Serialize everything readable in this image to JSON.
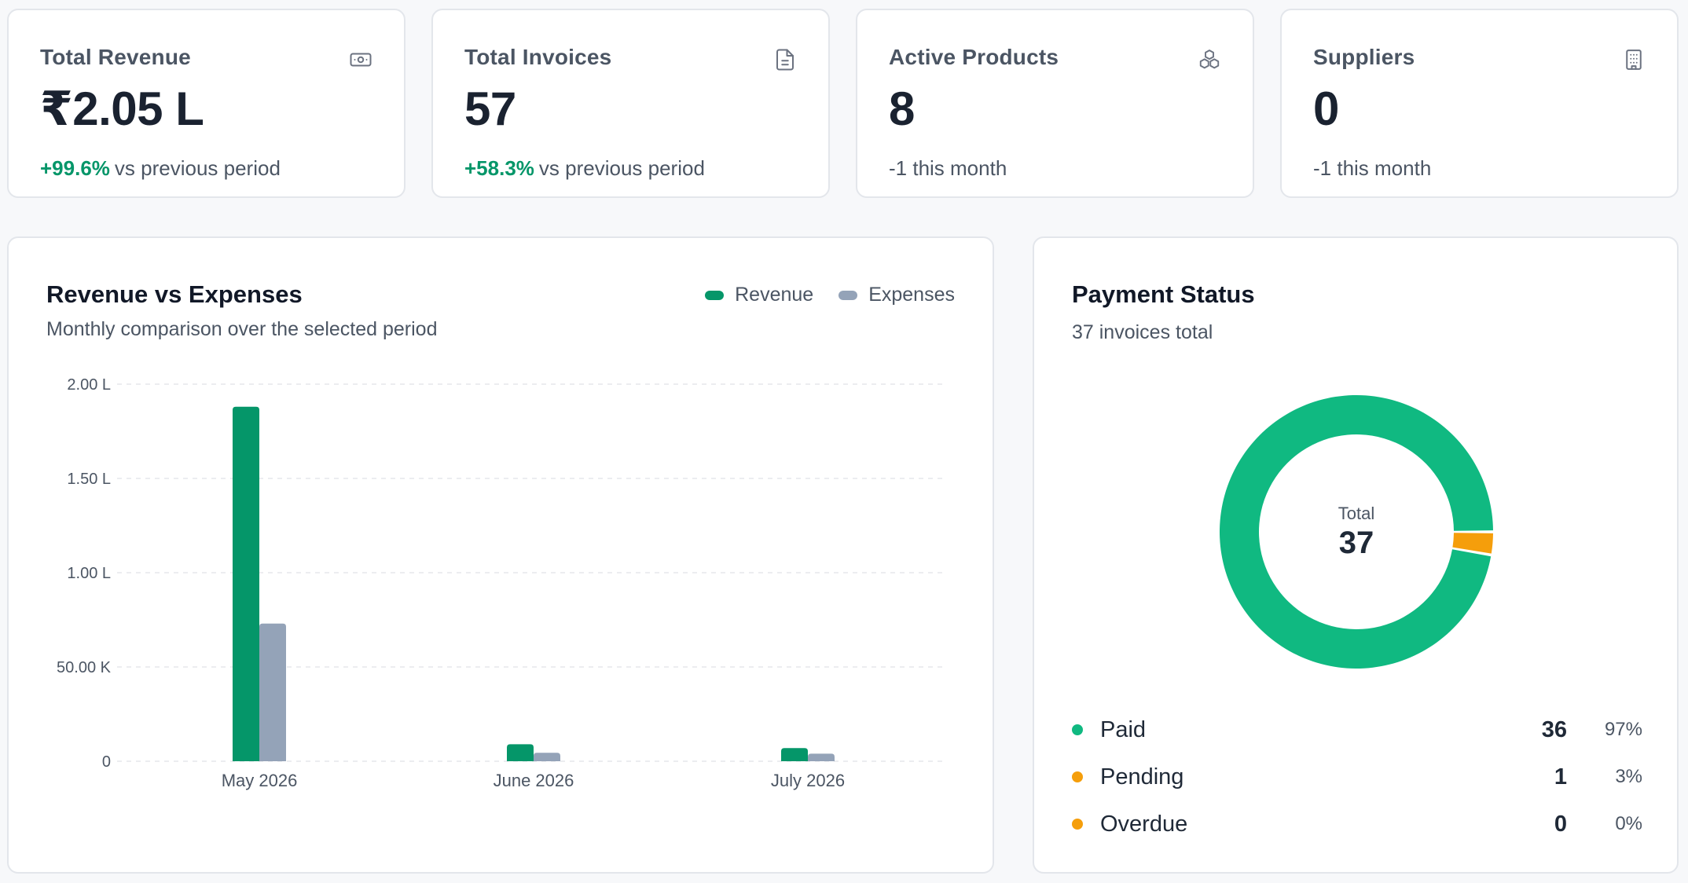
{
  "stats": [
    {
      "title": "Total Revenue",
      "value": "₹2.05 L",
      "delta": "+99.6%",
      "sub": "vs previous period",
      "icon": "banknote-icon"
    },
    {
      "title": "Total Invoices",
      "value": "57",
      "delta": "+58.3%",
      "sub": "vs previous period",
      "icon": "file-text-icon"
    },
    {
      "title": "Active Products",
      "value": "8",
      "delta": "",
      "sub": "-1 this month",
      "icon": "boxes-icon"
    },
    {
      "title": "Suppliers",
      "value": "0",
      "delta": "",
      "sub": "-1 this month",
      "icon": "building-icon"
    }
  ],
  "revenue_panel": {
    "title": "Revenue vs Expenses",
    "subtitle": "Monthly comparison over the selected period"
  },
  "payment_panel": {
    "title": "Payment Status",
    "subtitle": "37 invoices total",
    "center_label": "Total",
    "center_value": "37",
    "items": [
      {
        "name": "Paid",
        "count": "36",
        "pct": "97%",
        "value": 36,
        "color": "#10b981"
      },
      {
        "name": "Pending",
        "count": "1",
        "pct": "3%",
        "value": 1,
        "color": "#f59e0b"
      },
      {
        "name": "Overdue",
        "count": "0",
        "pct": "0%",
        "value": 0,
        "color": "#f59e0b"
      }
    ]
  },
  "chart_data": {
    "type": "bar",
    "title": "Revenue vs Expenses",
    "subtitle": "Monthly comparison over the selected period",
    "categories": [
      "May 2026",
      "June 2026",
      "July 2026"
    ],
    "series": [
      {
        "name": "Revenue",
        "values": [
          188000,
          9000,
          7000
        ],
        "color": "#059669"
      },
      {
        "name": "Expenses",
        "values": [
          73000,
          4500,
          4000
        ],
        "color": "#94a3b8"
      }
    ],
    "ylim": [
      0,
      200000
    ],
    "yticks": [
      0,
      50000,
      100000,
      150000,
      200000
    ],
    "ytick_labels": [
      "0",
      "50.00 K",
      "1.00 L",
      "1.50 L",
      "2.00 L"
    ],
    "grid": true,
    "legend": "top-right"
  }
}
